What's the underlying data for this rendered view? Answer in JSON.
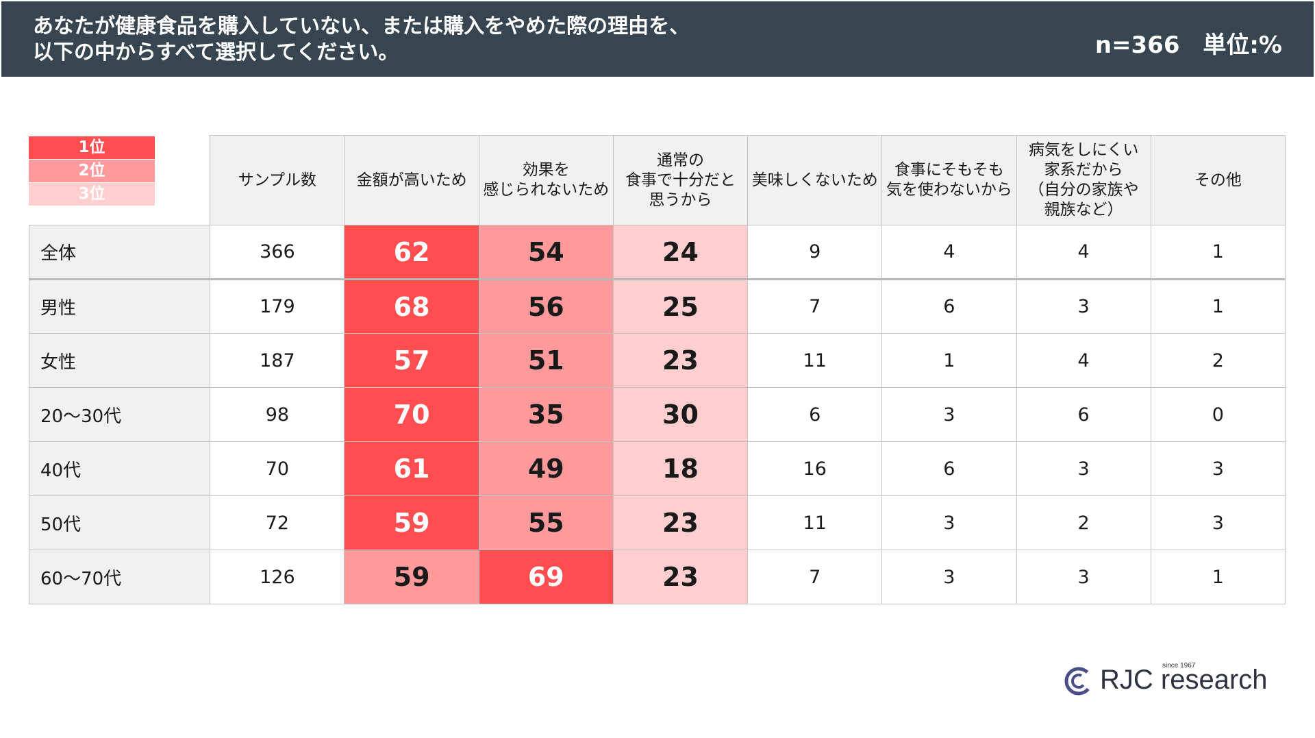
{
  "header": {
    "title_lines": [
      "あなたが健康食品を購入していない、または購入をやめた際の理由を、",
      "以下の中からすべて選択してください。"
    ],
    "sample": "n=366",
    "unit": "単位:%"
  },
  "legend": [
    {
      "label": "1位",
      "color": "#ff4d50"
    },
    {
      "label": "2位",
      "color": "#ff9a9c"
    },
    {
      "label": "3位",
      "color": "#ffcfd0"
    }
  ],
  "chart_data": {
    "type": "table",
    "columns": [
      [
        "サンプル数"
      ],
      [
        "金額が高いため"
      ],
      [
        "効果を",
        "感じられないため"
      ],
      [
        "通常の",
        "食事で十分だと",
        "思うから"
      ],
      [
        "美味しくないため"
      ],
      [
        "食事にそもそも",
        "気を使わないから"
      ],
      [
        "病気をしにくい",
        "家系だから",
        "（自分の家族や",
        "親族など）"
      ],
      [
        "その他"
      ]
    ],
    "rows": [
      {
        "label": "全体",
        "values": [
          366,
          62,
          54,
          24,
          9,
          4,
          4,
          1
        ],
        "ranks": [
          0,
          1,
          2,
          3,
          0,
          0,
          0,
          0
        ]
      },
      {
        "label": "男性",
        "values": [
          179,
          68,
          56,
          25,
          7,
          6,
          3,
          1
        ],
        "ranks": [
          0,
          1,
          2,
          3,
          0,
          0,
          0,
          0
        ]
      },
      {
        "label": "女性",
        "values": [
          187,
          57,
          51,
          23,
          11,
          1,
          4,
          2
        ],
        "ranks": [
          0,
          1,
          2,
          3,
          0,
          0,
          0,
          0
        ]
      },
      {
        "label": "20～30代",
        "values": [
          98,
          70,
          35,
          30,
          6,
          3,
          6,
          0
        ],
        "ranks": [
          0,
          1,
          2,
          3,
          0,
          0,
          0,
          0
        ]
      },
      {
        "label": "40代",
        "values": [
          70,
          61,
          49,
          18,
          16,
          6,
          3,
          3
        ],
        "ranks": [
          0,
          1,
          2,
          3,
          0,
          0,
          0,
          0
        ]
      },
      {
        "label": "50代",
        "values": [
          72,
          59,
          55,
          23,
          11,
          3,
          2,
          3
        ],
        "ranks": [
          0,
          1,
          2,
          3,
          0,
          0,
          0,
          0
        ]
      },
      {
        "label": "60～70代",
        "values": [
          126,
          59,
          69,
          23,
          7,
          3,
          3,
          1
        ],
        "ranks": [
          0,
          2,
          1,
          3,
          0,
          0,
          0,
          0
        ]
      }
    ]
  },
  "logo": {
    "name": "RJC research",
    "text": "RJC research",
    "since": "since 1967"
  }
}
